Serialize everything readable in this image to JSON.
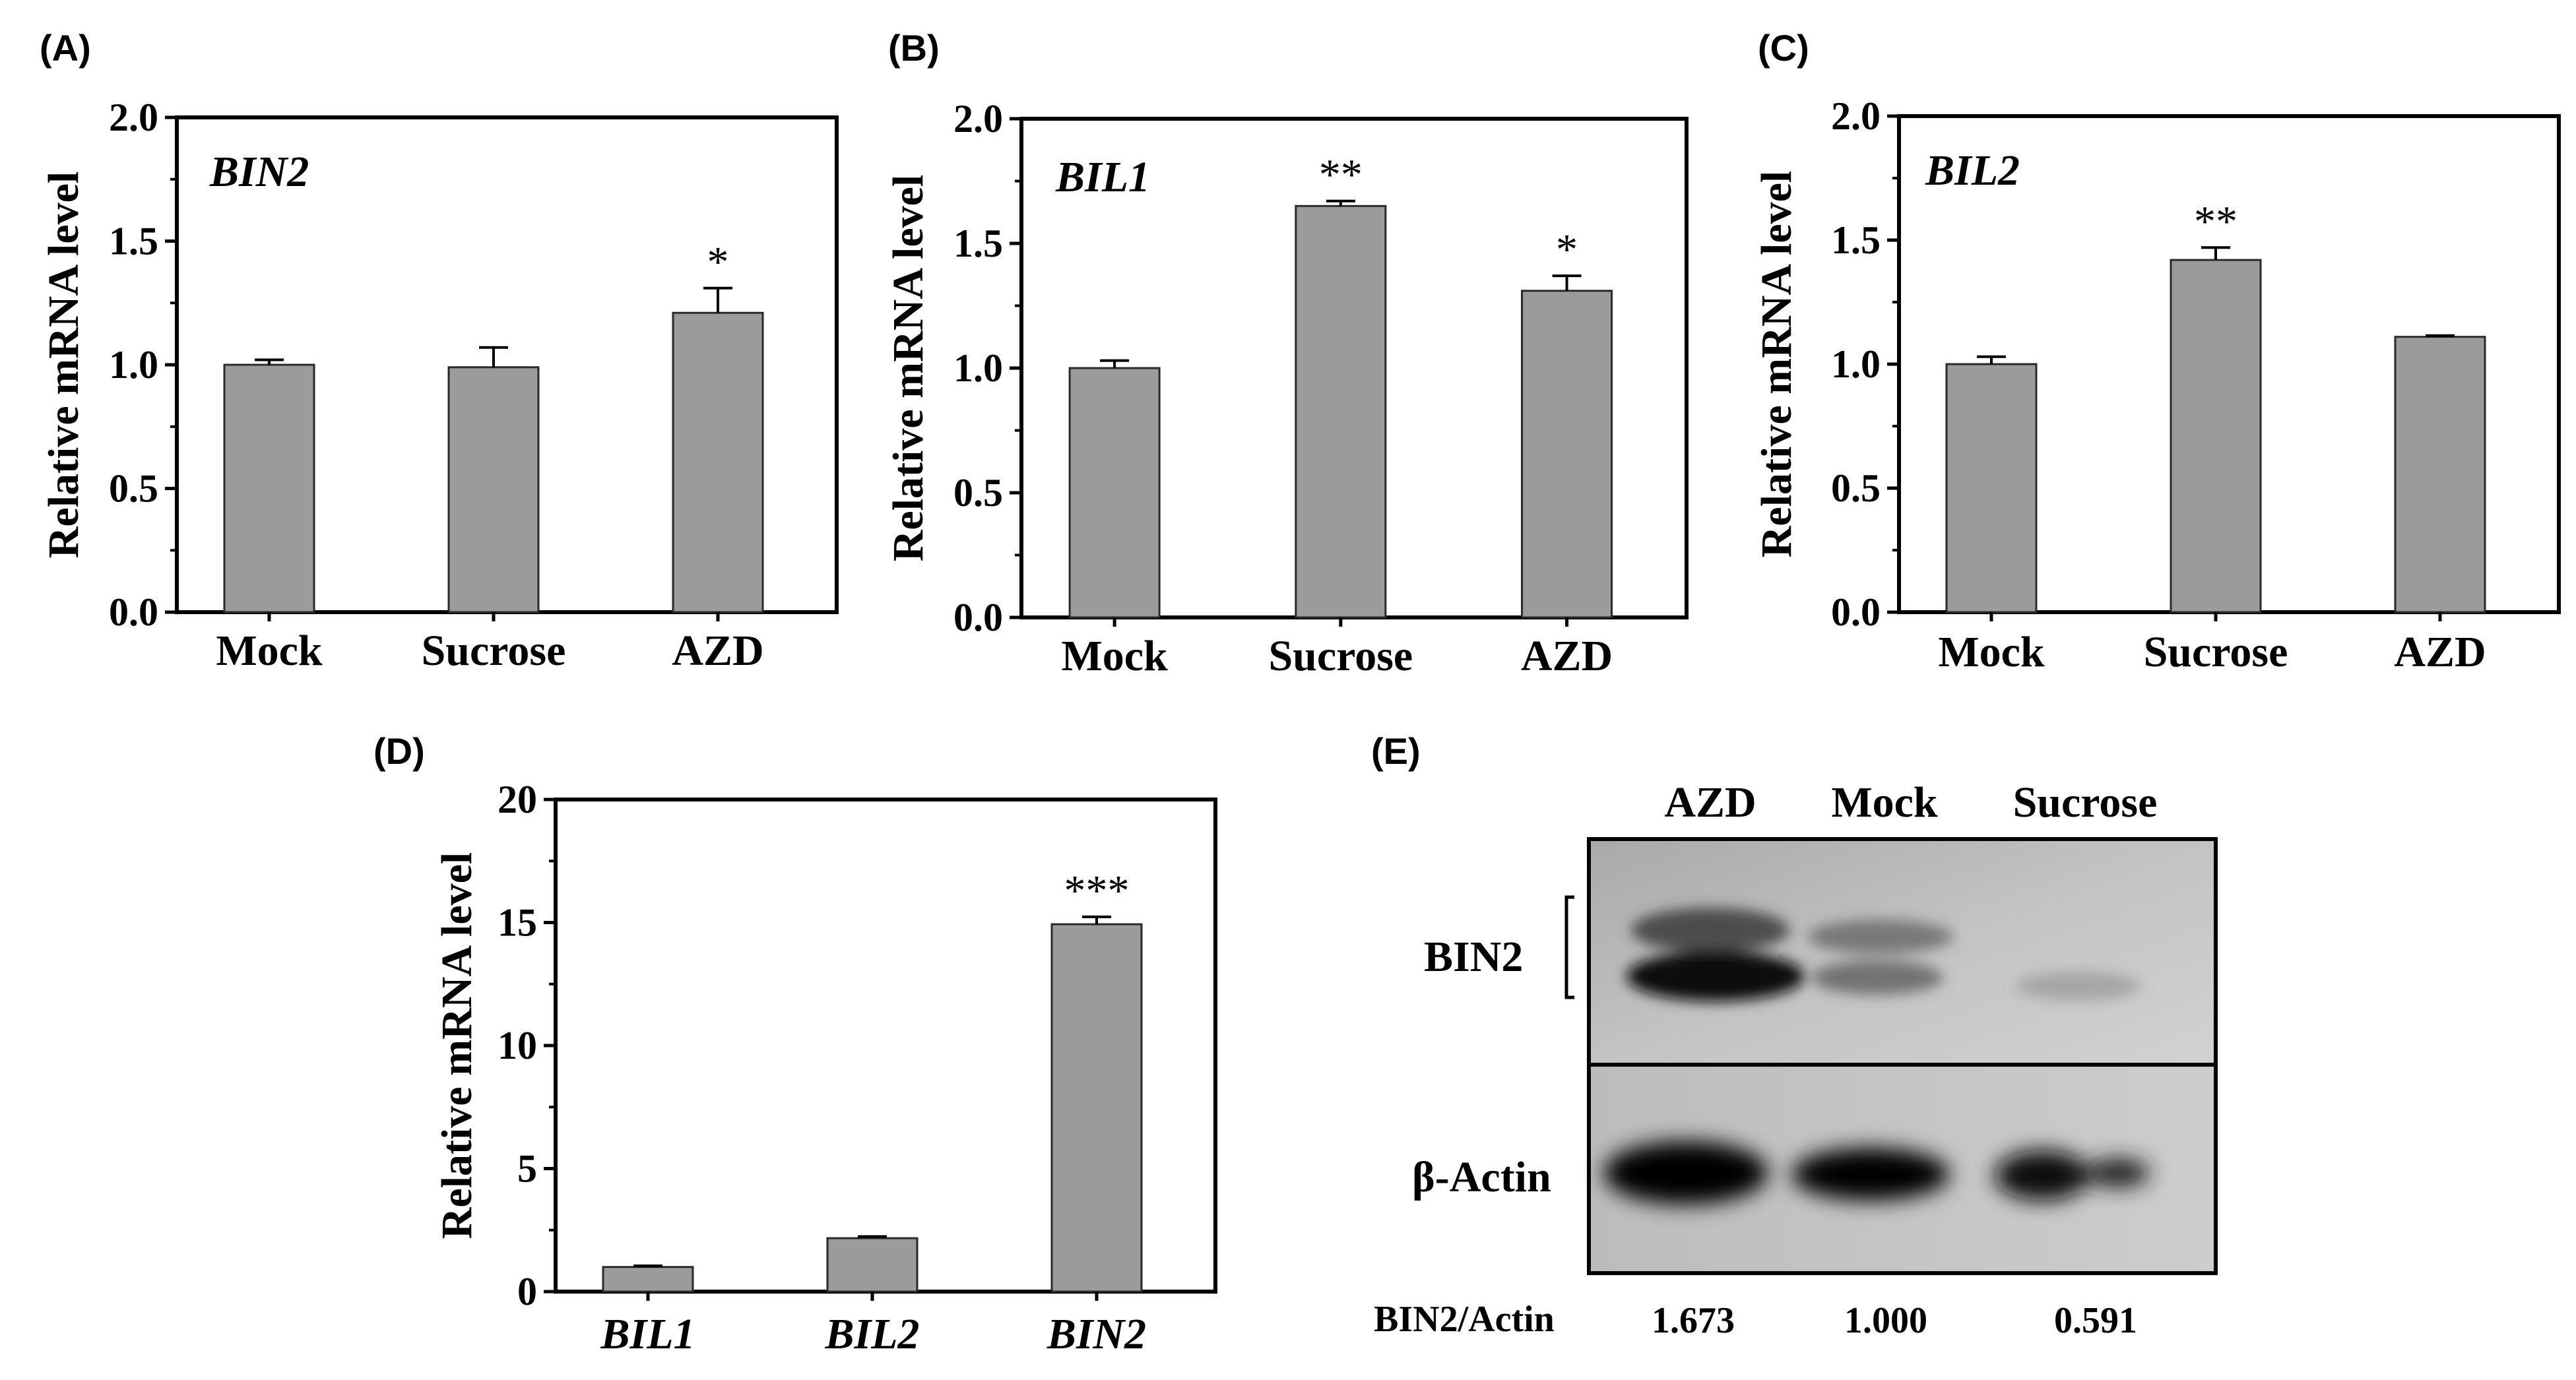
{
  "chart_data": [
    {
      "panel": "(A)",
      "type": "bar",
      "annotation": "BIN2",
      "ylabel": "Relative mRNA level",
      "categories": [
        "Mock",
        "Sucrose",
        "AZD"
      ],
      "values": [
        1.0,
        0.99,
        1.21
      ],
      "errors": [
        0.02,
        0.08,
        0.1
      ],
      "significance": [
        "",
        "",
        "*"
      ],
      "ylim": [
        0,
        2.0
      ],
      "yticks": [
        "0.0",
        "0.5",
        "1.0",
        "1.5",
        "2.0"
      ],
      "italic_categories": false
    },
    {
      "panel": "(B)",
      "type": "bar",
      "annotation": "BIL1",
      "ylabel": "Relative mRNA level",
      "categories": [
        "Mock",
        "Sucrose",
        "AZD"
      ],
      "values": [
        1.0,
        1.65,
        1.31
      ],
      "errors": [
        0.03,
        0.02,
        0.06
      ],
      "significance": [
        "",
        "**",
        "*"
      ],
      "ylim": [
        0,
        2.0
      ],
      "yticks": [
        "0.0",
        "0.5",
        "1.0",
        "1.5",
        "2.0"
      ],
      "italic_categories": false
    },
    {
      "panel": "(C)",
      "type": "bar",
      "annotation": "BIL2",
      "ylabel": "Relative mRNA level",
      "categories": [
        "Mock",
        "Sucrose",
        "AZD"
      ],
      "values": [
        1.0,
        1.42,
        1.11
      ],
      "errors": [
        0.03,
        0.05,
        0.005
      ],
      "significance": [
        "",
        "**",
        ""
      ],
      "ylim": [
        0,
        2.0
      ],
      "yticks": [
        "0.0",
        "0.5",
        "1.0",
        "1.5",
        "2.0"
      ],
      "italic_categories": false
    },
    {
      "panel": "(D)",
      "type": "bar",
      "annotation": "",
      "ylabel": "Relative mRNA level",
      "categories": [
        "BIL1",
        "BIL2",
        "BIN2"
      ],
      "values": [
        1.0,
        2.17,
        14.93
      ],
      "errors": [
        0.05,
        0.07,
        0.3
      ],
      "significance": [
        "",
        "",
        "***"
      ],
      "ylim": [
        0,
        20
      ],
      "yticks": [
        "0",
        "5",
        "10",
        "15",
        "20"
      ],
      "italic_categories": true
    }
  ],
  "western_blot": {
    "panel": "(E)",
    "lanes": [
      "AZD",
      "Mock",
      "Sucrose"
    ],
    "rows": [
      "BIN2",
      "β-Actin"
    ],
    "ratio_label": "BIN2/Actin",
    "ratios": [
      "1.673",
      "1.000",
      "0.591"
    ]
  },
  "colors": {
    "bar_fill": "#9b9b9b",
    "bar_stroke": "#2a2a2a",
    "axis": "#000000",
    "blot_bg": "#c9c9c9"
  }
}
